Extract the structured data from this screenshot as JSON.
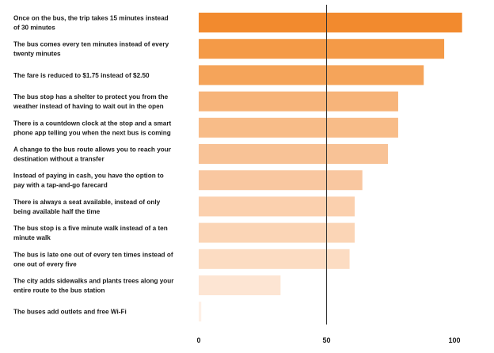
{
  "chart_data": {
    "type": "bar",
    "orientation": "horizontal",
    "categories": [
      "Once on the bus, the trip takes 15 minutes instead of 30 minutes",
      "The bus comes every ten minutes instead of every twenty minutes",
      "The fare is reduced to $1.75 instead of $2.50",
      "The bus stop has a shelter to protect you from the weather instead of having to wait out in the open",
      "There is a countdown clock at the stop and a smart phone app telling you when the next bus is coming",
      "A change to the bus route allows you to reach your destination without a transfer",
      "Instead of paying in cash, you have the option to pay with a tap-and-go farecard",
      "There is always a seat available, instead of only being available half the time",
      "The bus stop is a five minute walk instead of a ten minute walk",
      "The bus is late one out of every ten times instead of one out of every five",
      "The city adds sidewalks and plants trees along your entire route to the bus station",
      "The buses add outlets and free Wi-Fi"
    ],
    "label_lines": [
      [
        "Once on the bus, the trip takes 15 minutes instead",
        "of 30 minutes"
      ],
      [
        "The bus comes every ten minutes instead of every",
        "twenty minutes"
      ],
      [
        "The fare is reduced to $1.75 instead of $2.50"
      ],
      [
        "The bus stop has a shelter to protect you from the",
        "weather instead of having to wait out in the open"
      ],
      [
        "There is a countdown clock at the stop and a smart",
        "phone app telling you when the next bus is coming"
      ],
      [
        "A change to the bus route allows you to reach your",
        "destination without a transfer"
      ],
      [
        "Instead of paying in cash, you have the option to",
        "pay with a tap-and-go farecard"
      ],
      [
        "There is always a seat available, instead of only",
        "being available half the time"
      ],
      [
        "The bus stop is a five minute walk instead of a ten",
        "minute walk"
      ],
      [
        "The bus is late one out of every ten times instead of",
        "one out of every five"
      ],
      [
        "The city adds sidewalks and plants trees along your",
        "entire route to the bus station"
      ],
      [
        "The buses add outlets and free Wi-Fi"
      ]
    ],
    "values": [
      103,
      96,
      88,
      78,
      78,
      74,
      64,
      61,
      61,
      59,
      32,
      1
    ],
    "colors": [
      "#f28a2e",
      "#f49a47",
      "#f5a45a",
      "#f7b47a",
      "#f8bc88",
      "#f8c296",
      "#f9c7a0",
      "#fbd0ae",
      "#fbd5b6",
      "#fcdcc2",
      "#fde5d3",
      "#fef0e6"
    ],
    "xticks": [
      0,
      50,
      100
    ],
    "xlim": [
      0,
      100
    ],
    "reference_line": 50,
    "reference_line_color": "#333333",
    "title": "",
    "xlabel": "",
    "ylabel": "",
    "grid": false,
    "legend": "none"
  }
}
